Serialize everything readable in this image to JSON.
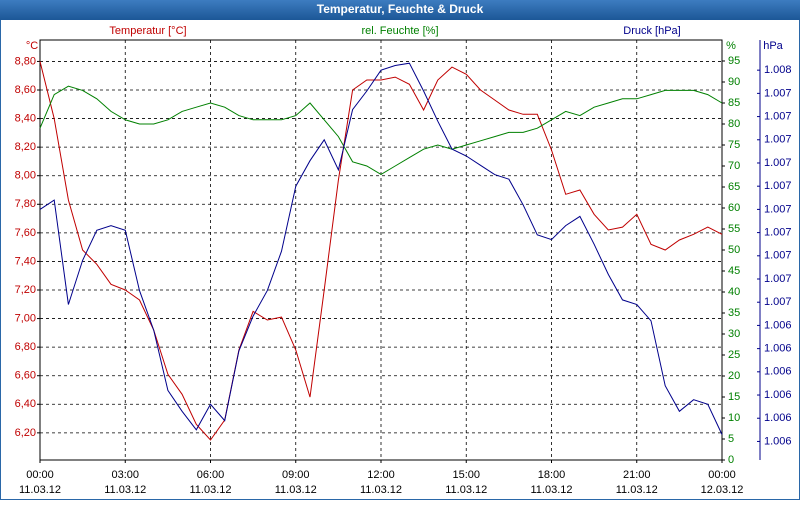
{
  "chart_data": {
    "type": "line",
    "title": "Temperatur, Feuchte & Druck",
    "ylabel": "°C",
    "y2label": "%",
    "y3label": "hPa",
    "x": [
      0,
      0.5,
      1,
      1.5,
      2,
      2.5,
      3,
      3.5,
      4,
      4.5,
      5,
      5.5,
      6,
      6.5,
      7,
      7.5,
      8,
      8.5,
      9,
      9.5,
      10,
      10.5,
      11,
      11.5,
      12,
      12.5,
      13,
      13.5,
      14,
      14.5,
      15,
      15.5,
      16,
      16.5,
      17,
      17.5,
      18,
      18.5,
      19,
      19.5,
      20,
      20.5,
      21,
      21.5,
      22,
      22.5,
      23,
      23.5,
      24
    ],
    "xlim": [
      0,
      24
    ],
    "xticks": [
      {
        "value": 0,
        "label": "00:00",
        "sublabel": "11.03.12"
      },
      {
        "value": 3,
        "label": "03:00",
        "sublabel": "11.03.12"
      },
      {
        "value": 6,
        "label": "06:00",
        "sublabel": "11.03.12"
      },
      {
        "value": 9,
        "label": "09:00",
        "sublabel": "11.03.12"
      },
      {
        "value": 12,
        "label": "12:00",
        "sublabel": "11.03.12"
      },
      {
        "value": 15,
        "label": "15:00",
        "sublabel": "11.03.12"
      },
      {
        "value": 18,
        "label": "18:00",
        "sublabel": "11.03.12"
      },
      {
        "value": 21,
        "label": "21:00",
        "sublabel": "11.03.12"
      },
      {
        "value": 24,
        "label": "00:00",
        "sublabel": "12.03.12"
      }
    ],
    "ylim": [
      6.01,
      8.95
    ],
    "yticks": [
      {
        "value": 6.2,
        "label": "6,20"
      },
      {
        "value": 6.4,
        "label": "6,40"
      },
      {
        "value": 6.6,
        "label": "6,60"
      },
      {
        "value": 6.8,
        "label": "6,80"
      },
      {
        "value": 7.0,
        "label": "7,00"
      },
      {
        "value": 7.2,
        "label": "7,20"
      },
      {
        "value": 7.4,
        "label": "7,40"
      },
      {
        "value": 7.6,
        "label": "7,60"
      },
      {
        "value": 7.8,
        "label": "7,80"
      },
      {
        "value": 8.0,
        "label": "8,00"
      },
      {
        "value": 8.2,
        "label": "8,20"
      },
      {
        "value": 8.4,
        "label": "8,40"
      },
      {
        "value": 8.6,
        "label": "8,60"
      },
      {
        "value": 8.8,
        "label": "8,80"
      }
    ],
    "y2lim": [
      0,
      100
    ],
    "y2ticks": [
      0,
      5,
      10,
      15,
      20,
      25,
      30,
      35,
      40,
      45,
      50,
      55,
      60,
      65,
      70,
      75,
      80,
      85,
      90,
      95
    ],
    "y3lim": [
      1.00587,
      1.00768
    ],
    "y3ticks": [
      {
        "value": 1.00595,
        "label": "1.006"
      },
      {
        "value": 1.00605,
        "label": "1.006"
      },
      {
        "value": 1.00615,
        "label": "1.006"
      },
      {
        "value": 1.00625,
        "label": "1.006"
      },
      {
        "value": 1.00635,
        "label": "1.006"
      },
      {
        "value": 1.00645,
        "label": "1.006"
      },
      {
        "value": 1.00655,
        "label": "1.007"
      },
      {
        "value": 1.00665,
        "label": "1.007"
      },
      {
        "value": 1.00675,
        "label": "1.007"
      },
      {
        "value": 1.00685,
        "label": "1.007"
      },
      {
        "value": 1.00695,
        "label": "1.007"
      },
      {
        "value": 1.00705,
        "label": "1.007"
      },
      {
        "value": 1.00715,
        "label": "1.007"
      },
      {
        "value": 1.00725,
        "label": "1.007"
      },
      {
        "value": 1.00735,
        "label": "1.007"
      },
      {
        "value": 1.00745,
        "label": "1.007"
      },
      {
        "value": 1.00755,
        "label": "1.008"
      }
    ],
    "grid": true,
    "series": [
      {
        "name": "Temperatur [°C]",
        "color": "#c00000",
        "axis": "y",
        "values": [
          8.8,
          8.4,
          7.83,
          7.48,
          7.38,
          7.24,
          7.2,
          7.13,
          6.92,
          6.61,
          6.47,
          6.26,
          6.15,
          6.29,
          6.78,
          7.05,
          6.99,
          7.01,
          6.78,
          6.45,
          7.2,
          7.97,
          8.6,
          8.67,
          8.67,
          8.69,
          8.64,
          8.46,
          8.67,
          8.76,
          8.71,
          8.6,
          8.53,
          8.46,
          8.43,
          8.43,
          8.18,
          7.87,
          7.9,
          7.73,
          7.62,
          7.64,
          7.73,
          7.52,
          7.48,
          7.55,
          7.59,
          7.64,
          7.59
        ]
      },
      {
        "name": "rel. Feuchte [%]",
        "color": "#008000",
        "axis": "y2",
        "values": [
          79,
          87,
          89,
          88,
          86,
          83,
          81,
          80,
          80,
          81,
          83,
          84,
          85,
          84,
          82,
          81,
          81,
          81,
          82,
          85,
          81,
          77,
          71,
          70,
          68,
          70,
          72,
          74,
          75,
          74,
          75,
          76,
          77,
          78,
          78,
          79,
          81,
          83,
          82,
          84,
          85,
          86,
          86,
          87,
          88,
          88,
          88,
          87,
          85
        ]
      },
      {
        "name": "Druck [hPa]",
        "color": "#00008b",
        "axis": "y3",
        "values": [
          1.00695,
          1.00699,
          1.00654,
          1.00673,
          1.00686,
          1.00688,
          1.00686,
          1.0066,
          1.00643,
          1.00617,
          1.00608,
          1.006,
          1.00611,
          1.00604,
          1.00634,
          1.00649,
          1.0066,
          1.00677,
          1.00705,
          1.00716,
          1.00725,
          1.00712,
          1.00738,
          1.00746,
          1.00755,
          1.00757,
          1.00758,
          1.00746,
          1.00733,
          1.00721,
          1.00718,
          1.00714,
          1.0071,
          1.00708,
          1.00697,
          1.00684,
          1.00682,
          1.00688,
          1.00692,
          1.0068,
          1.00667,
          1.00656,
          1.00654,
          1.00647,
          1.00619,
          1.00608,
          1.00613,
          1.00611,
          1.00598
        ]
      }
    ]
  }
}
